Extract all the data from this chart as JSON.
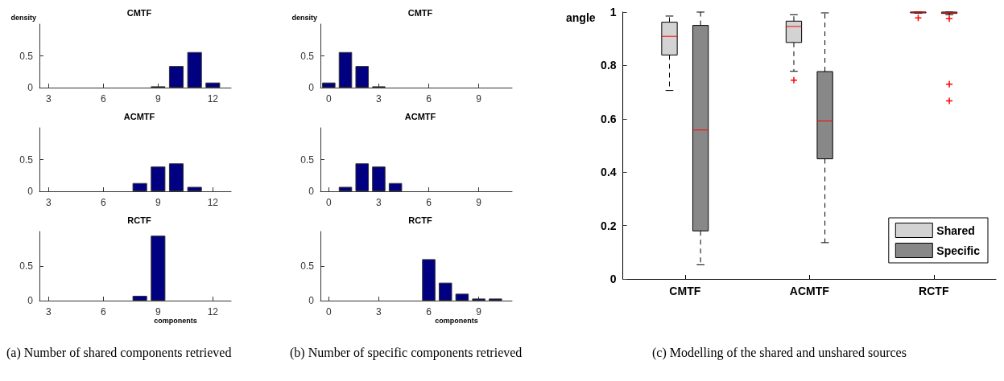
{
  "chart_data": [
    {
      "type": "bar",
      "title": "CMTF",
      "ylabel": "density",
      "x": [
        9,
        10,
        11,
        12
      ],
      "values": [
        0.02,
        0.34,
        0.56,
        0.08
      ],
      "color": "#000080",
      "xlim": [
        2.5,
        13
      ],
      "xticks": [
        3,
        6,
        9,
        12
      ],
      "ylim": [
        0,
        1
      ],
      "yticks": [
        0,
        0.5
      ]
    },
    {
      "type": "bar",
      "title": "ACMTF",
      "x": [
        8,
        9,
        10,
        11
      ],
      "values": [
        0.13,
        0.39,
        0.44,
        0.07
      ],
      "color": "#000080",
      "xlim": [
        2.5,
        13
      ],
      "xticks": [
        3,
        6,
        9,
        12
      ],
      "ylim": [
        0,
        1
      ],
      "yticks": [
        0,
        0.5
      ]
    },
    {
      "type": "bar",
      "title": "RCTF",
      "xlabel": "components",
      "x": [
        8,
        9
      ],
      "values": [
        0.07,
        0.94
      ],
      "color": "#000080",
      "xlim": [
        2.5,
        13
      ],
      "xticks": [
        3,
        6,
        9,
        12
      ],
      "ylim": [
        0,
        1
      ],
      "yticks": [
        0,
        0.5
      ],
      "annotations": [
        "(a) Number of shared components retrieved"
      ]
    },
    {
      "type": "bar",
      "title": "CMTF",
      "ylabel": "density",
      "x": [
        0,
        1,
        2,
        3
      ],
      "values": [
        0.08,
        0.56,
        0.34,
        0.02
      ],
      "color": "#000080",
      "xlim": [
        -0.5,
        11
      ],
      "xticks": [
        0,
        3,
        6,
        9
      ],
      "ylim": [
        0,
        1
      ],
      "yticks": [
        0,
        0.5
      ]
    },
    {
      "type": "bar",
      "title": "ACMTF",
      "x": [
        1,
        2,
        3,
        4
      ],
      "values": [
        0.07,
        0.44,
        0.39,
        0.13
      ],
      "color": "#000080",
      "xlim": [
        -0.5,
        11
      ],
      "xticks": [
        0,
        3,
        6,
        9
      ],
      "ylim": [
        0,
        1
      ],
      "yticks": [
        0,
        0.5
      ]
    },
    {
      "type": "bar",
      "title": "RCTF",
      "xlabel": "components",
      "x": [
        6,
        7,
        8,
        9,
        10
      ],
      "values": [
        0.6,
        0.26,
        0.1,
        0.03,
        0.03
      ],
      "color": "#000080",
      "xlim": [
        -0.5,
        11
      ],
      "xticks": [
        0,
        3,
        6,
        9
      ],
      "ylim": [
        0,
        1
      ],
      "yticks": [
        0,
        0.5
      ],
      "annotations": [
        "(b) Number of specific components retrieved"
      ]
    },
    {
      "type": "box",
      "ylabel": "angle",
      "categories": [
        "CMTF",
        "ACMTF",
        "RCTF"
      ],
      "ylim": [
        0,
        1
      ],
      "yticks": [
        0,
        0.2,
        0.4,
        0.6,
        0.8,
        1
      ],
      "legend": "bottom right",
      "annotations": [
        "(c) Modelling of the shared and unshared sources"
      ],
      "series": [
        {
          "name": "Shared",
          "color": "#d3d3d3",
          "boxes": [
            {
              "low": 0.706,
              "q1": 0.839,
              "median": 0.909,
              "q3": 0.962,
              "high": 0.985
            },
            {
              "low": 0.778,
              "q1": 0.886,
              "median": 0.946,
              "q3": 0.966,
              "high": 0.99,
              "outliers": [
                0.745
              ]
            },
            {
              "low": 0.996,
              "q1": 0.998,
              "median": 1,
              "q3": 1,
              "high": 1,
              "outliers": [
                0.978
              ]
            }
          ]
        },
        {
          "name": "Specific",
          "color": "#888888",
          "boxes": [
            {
              "low": 0.053,
              "q1": 0.18,
              "median": 0.558,
              "q3": 0.95,
              "high": 1
            },
            {
              "low": 0.136,
              "q1": 0.45,
              "median": 0.592,
              "q3": 0.777,
              "high": 0.997
            },
            {
              "low": 0.99,
              "q1": 0.995,
              "median": 0.998,
              "q3": 1,
              "high": 1,
              "outliers": [
                0.975,
                0.73,
                0.667
              ]
            }
          ]
        }
      ]
    }
  ]
}
